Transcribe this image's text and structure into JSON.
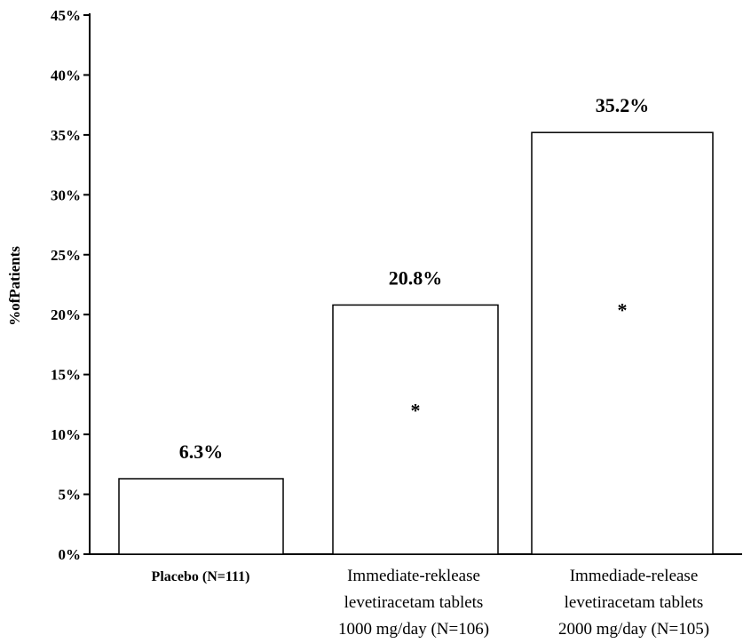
{
  "chart_data": {
    "type": "bar",
    "ylabel": "%ofPatients",
    "ylim": [
      0,
      45
    ],
    "yticks": [
      "0%",
      "5%",
      "10%",
      "15%",
      "20%",
      "25%",
      "30%",
      "35%",
      "40%",
      "45%"
    ],
    "categories": [
      [
        "Placebo (N=111)"
      ],
      [
        "Immediate-reklease",
        "levetiracetam tablets",
        "1000 mg/day (N=106)"
      ],
      [
        "Immediade-release",
        "levetiracetam tablets",
        "2000 mg/day (N=105)"
      ]
    ],
    "values": [
      6.3,
      20.8,
      35.2
    ],
    "data_labels": [
      "6.3%",
      "20.8%",
      "35.2%"
    ],
    "significance_markers": [
      "",
      "*",
      "*"
    ],
    "grid": false,
    "colors": {
      "bar_fill": "#ffffff",
      "bar_stroke": "#000000",
      "axis": "#000000"
    }
  }
}
